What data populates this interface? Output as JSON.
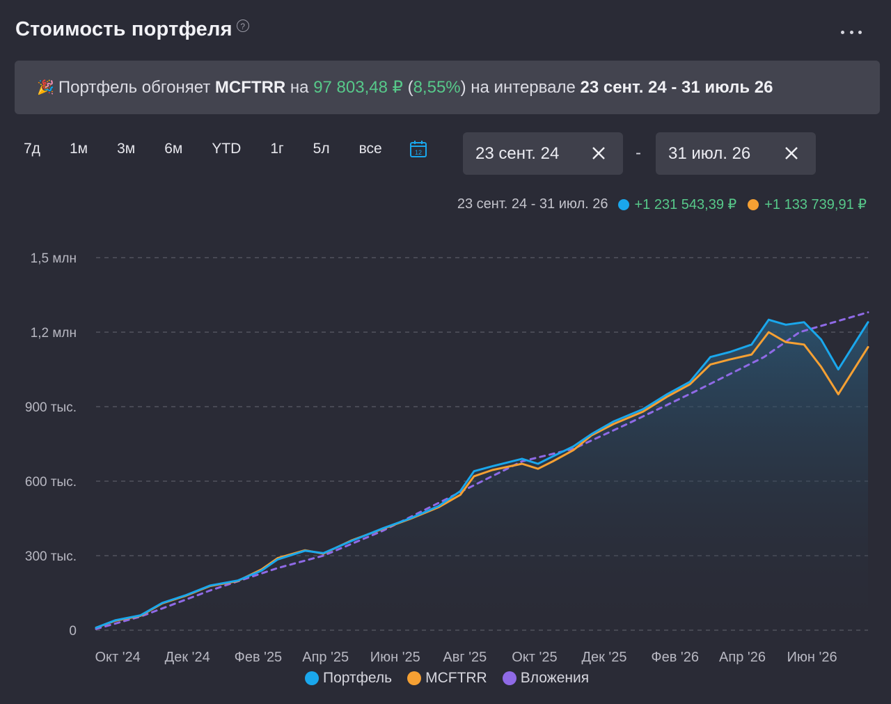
{
  "header": {
    "title": "Стоимость портфеля",
    "help_icon": "question-circle-icon",
    "more_icon": "ellipsis-icon"
  },
  "banner": {
    "icon": "party-popper-icon",
    "prefix": "Портфель обгоняет",
    "benchmark": "MCFTRR",
    "on": "на",
    "amount": "97 803,48 ₽",
    "open_paren": "(",
    "percent": "8,55%",
    "close_paren_text": ") на интервале",
    "interval": "23 сент. 24 - 31 июль 26"
  },
  "periods": [
    "7д",
    "1м",
    "3м",
    "6м",
    "YTD",
    "1г",
    "5л",
    "все"
  ],
  "calendar_icon": "calendar-icon",
  "date_from": {
    "value": "23 сент. 24"
  },
  "date_to": {
    "value": "31 июл. 26"
  },
  "date_separator": "-",
  "summary": {
    "range": "23 сент. 24 - 31 июл. 26",
    "portfolio_change": "+1 231 543,39 ₽",
    "benchmark_change": "+1 133 739,91 ₽"
  },
  "colors": {
    "portfolio": "#1aa7ec",
    "benchmark": "#f5a033",
    "investments": "#8f6ae6",
    "positive": "#57c98a",
    "grid": "#5a5b66"
  },
  "chart_data": {
    "type": "line",
    "x_ticks": [
      "Окт '24",
      "Дек '24",
      "Фев '25",
      "Апр '25",
      "Июн '25",
      "Авг '25",
      "Окт '25",
      "Дек '25",
      "Фев '26",
      "Апр '26",
      "Июн '26"
    ],
    "y_ticks": [
      "0",
      "300 тыс.",
      "600 тыс.",
      "900 тыс.",
      "1,2 млн",
      "1,5 млн"
    ],
    "ylim": [
      0,
      1500000
    ],
    "xlim": [
      "2024-09-23",
      "2026-07-31"
    ],
    "grid": true,
    "legend_position": "bottom",
    "series": [
      {
        "name": "Портфель",
        "color": "#1aa7ec",
        "points": [
          [
            "2024-09-23",
            10000
          ],
          [
            "2024-10-10",
            40000
          ],
          [
            "2024-11-01",
            60000
          ],
          [
            "2024-11-20",
            110000
          ],
          [
            "2024-12-10",
            140000
          ],
          [
            "2025-01-01",
            180000
          ],
          [
            "2025-01-25",
            200000
          ],
          [
            "2025-02-15",
            240000
          ],
          [
            "2025-03-01",
            285000
          ],
          [
            "2025-03-25",
            320000
          ],
          [
            "2025-04-10",
            310000
          ],
          [
            "2025-05-05",
            360000
          ],
          [
            "2025-06-01",
            410000
          ],
          [
            "2025-06-25",
            450000
          ],
          [
            "2025-07-20",
            500000
          ],
          [
            "2025-08-08",
            560000
          ],
          [
            "2025-08-20",
            640000
          ],
          [
            "2025-09-05",
            660000
          ],
          [
            "2025-10-01",
            690000
          ],
          [
            "2025-10-15",
            670000
          ],
          [
            "2025-10-28",
            700000
          ],
          [
            "2025-11-15",
            740000
          ],
          [
            "2025-12-01",
            790000
          ],
          [
            "2025-12-20",
            840000
          ],
          [
            "2026-01-15",
            890000
          ],
          [
            "2026-02-05",
            950000
          ],
          [
            "2026-02-25",
            1000000
          ],
          [
            "2026-03-15",
            1100000
          ],
          [
            "2026-04-01",
            1120000
          ],
          [
            "2026-04-20",
            1150000
          ],
          [
            "2026-05-05",
            1250000
          ],
          [
            "2026-05-20",
            1230000
          ],
          [
            "2026-06-05",
            1240000
          ],
          [
            "2026-06-20",
            1170000
          ],
          [
            "2026-07-05",
            1050000
          ],
          [
            "2026-07-31",
            1240000
          ]
        ]
      },
      {
        "name": "MCFTRR",
        "color": "#f5a033",
        "points": [
          [
            "2024-09-23",
            10000
          ],
          [
            "2024-10-10",
            38000
          ],
          [
            "2024-11-01",
            58000
          ],
          [
            "2024-11-20",
            108000
          ],
          [
            "2024-12-10",
            138000
          ],
          [
            "2025-01-01",
            178000
          ],
          [
            "2025-01-25",
            198000
          ],
          [
            "2025-02-15",
            245000
          ],
          [
            "2025-03-01",
            290000
          ],
          [
            "2025-03-25",
            322000
          ],
          [
            "2025-04-10",
            308000
          ],
          [
            "2025-05-05",
            362000
          ],
          [
            "2025-06-01",
            408000
          ],
          [
            "2025-06-25",
            448000
          ],
          [
            "2025-07-20",
            495000
          ],
          [
            "2025-08-08",
            545000
          ],
          [
            "2025-08-20",
            620000
          ],
          [
            "2025-09-05",
            645000
          ],
          [
            "2025-10-01",
            670000
          ],
          [
            "2025-10-15",
            650000
          ],
          [
            "2025-10-28",
            680000
          ],
          [
            "2025-11-15",
            725000
          ],
          [
            "2025-12-01",
            785000
          ],
          [
            "2025-12-20",
            830000
          ],
          [
            "2026-01-15",
            880000
          ],
          [
            "2026-02-05",
            940000
          ],
          [
            "2026-02-25",
            990000
          ],
          [
            "2026-03-15",
            1070000
          ],
          [
            "2026-04-01",
            1090000
          ],
          [
            "2026-04-20",
            1110000
          ],
          [
            "2026-05-05",
            1200000
          ],
          [
            "2026-05-20",
            1160000
          ],
          [
            "2026-06-05",
            1150000
          ],
          [
            "2026-06-20",
            1060000
          ],
          [
            "2026-07-05",
            950000
          ],
          [
            "2026-07-31",
            1140000
          ]
        ]
      },
      {
        "name": "Вложения",
        "color": "#8f6ae6",
        "dashed": true,
        "points": [
          [
            "2024-09-23",
            5000
          ],
          [
            "2024-11-01",
            55000
          ],
          [
            "2025-01-01",
            160000
          ],
          [
            "2025-03-01",
            250000
          ],
          [
            "2025-04-10",
            300000
          ],
          [
            "2025-06-01",
            400000
          ],
          [
            "2025-08-01",
            540000
          ],
          [
            "2025-10-01",
            680000
          ],
          [
            "2025-11-15",
            730000
          ],
          [
            "2026-01-01",
            830000
          ],
          [
            "2026-03-01",
            960000
          ],
          [
            "2026-05-01",
            1100000
          ],
          [
            "2026-06-01",
            1200000
          ],
          [
            "2026-07-31",
            1280000
          ]
        ]
      }
    ]
  }
}
